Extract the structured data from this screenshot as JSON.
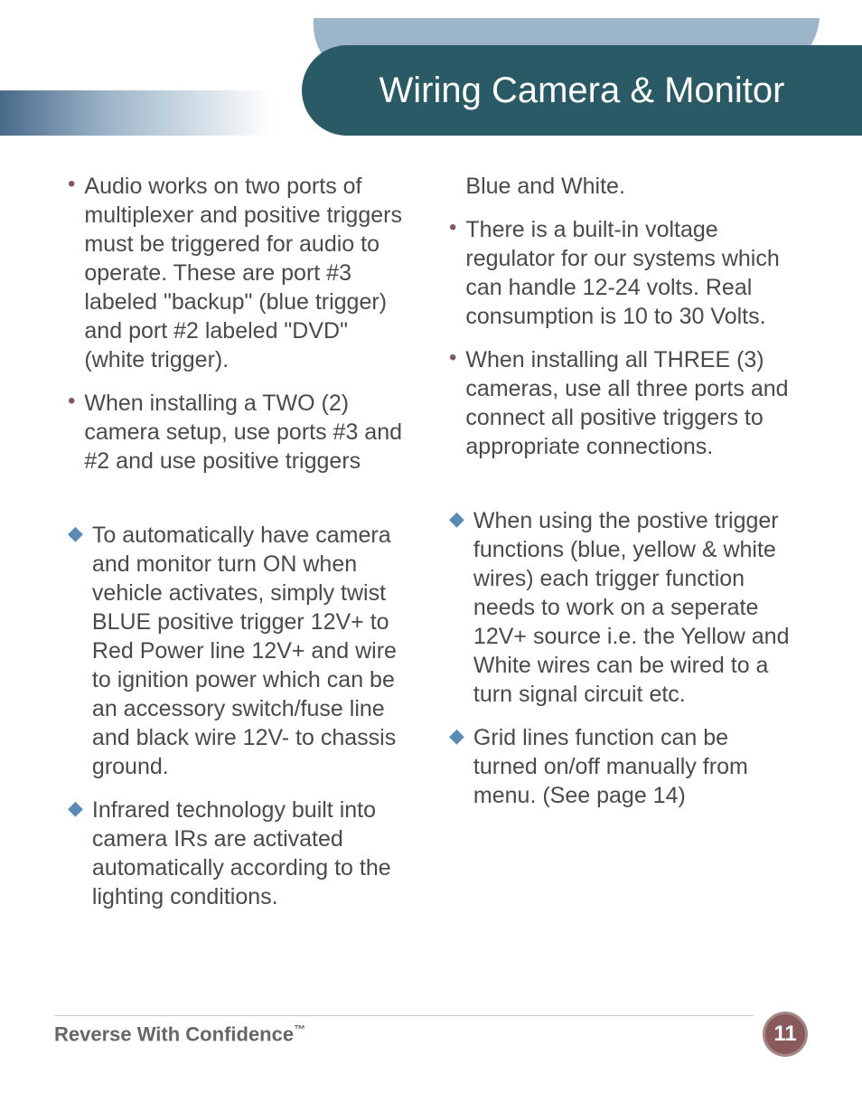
{
  "header": {
    "title": "Wiring Camera & Monitor"
  },
  "columns": {
    "left": {
      "section1": [
        "Audio works on two ports of multiplexer and positive triggers must be triggered for audio to operate. These are port #3 labeled \"backup\" (blue trigger) and port #2 labeled \"DVD\" (white trigger).",
        "When installing a TWO (2) camera setup, use ports #3 and #2 and use positive triggers"
      ],
      "section2": [
        "To automatically have camera and monitor turn ON when vehicle activates, simply twist BLUE positive trigger 12V+ to Red Power line 12V+ and wire to ignition power which can be an accessory switch/fuse line and black wire 12V- to chassis ground.",
        "Infrared technology built into camera IRs are activated automatically according to the lighting conditions."
      ]
    },
    "right": {
      "section1_lead": "Blue and White.",
      "section1": [
        "There is a built-in voltage regulator for our systems which can handle 12-24 volts. Real consumption is 10 to 30 Volts.",
        "When installing all THREE (3) cameras, use all three ports and connect all positive triggers to appropriate connections."
      ],
      "section2": [
        "When using the postive trigger functions (blue, yellow & white wires) each trigger function needs to work on a seperate 12V+ source i.e. the Yellow and White wires can be wired to a turn signal circuit etc.",
        "Grid lines function can be turned on/off manually from menu. (See page 14)"
      ]
    }
  },
  "footer": {
    "tagline": "Reverse With Confidence",
    "tm": "™",
    "page": "11"
  },
  "style": {
    "bullet_dot_color": "#7f5a5a",
    "bullet_diamond_color": "#5b8bb5",
    "body_text_color": "#4a4a4a",
    "header_bg": "#2a5a65",
    "header_wave": "#9db5c8",
    "badge_bg": "#8a5a5a",
    "body_fontsize": 25,
    "header_fontsize": 40
  }
}
